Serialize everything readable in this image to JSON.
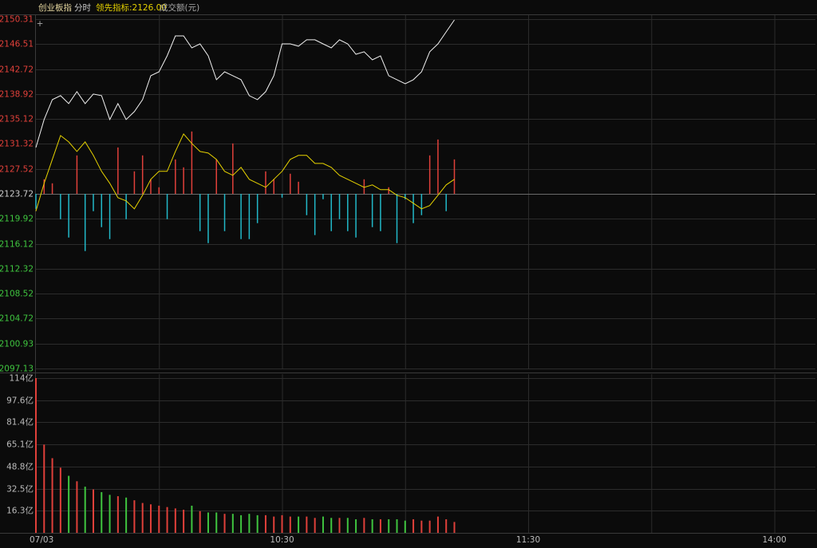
{
  "chart_data": [
    {
      "type": "line",
      "title": "创业板指",
      "header_items": [
        "分时",
        "领先指标:2126.00",
        "成交额(元)"
      ],
      "x": [
        0,
        2,
        4,
        6,
        8,
        10,
        12,
        14,
        16,
        18,
        20,
        22,
        24,
        26,
        28,
        30,
        32,
        34,
        36,
        38,
        40,
        42,
        44,
        46,
        48,
        50,
        52,
        54,
        56,
        58,
        60,
        62,
        64,
        66,
        68,
        70,
        72,
        74,
        76,
        78,
        80,
        82,
        84,
        86,
        88,
        90,
        92,
        94,
        96,
        98,
        100,
        102
      ],
      "xlim": [
        0,
        190
      ],
      "xminor": [
        30,
        60,
        90,
        120,
        150,
        180
      ],
      "ylim": [
        2097.13,
        2150.31
      ],
      "yticks": [
        2150.31,
        2146.51,
        2142.72,
        2138.92,
        2135.12,
        2131.32,
        2127.52,
        2123.72,
        2119.92,
        2116.12,
        2112.32,
        2108.52,
        2104.72,
        2100.93,
        2097.13
      ],
      "baseline": 2123.72,
      "up_color": "#e0403a",
      "down_color": "#22b8c8",
      "flat_color": "#cccccc",
      "down_label_color": "#3fc43f",
      "series": [
        {
          "type": "bar",
          "values": [
            2121.44,
            2125.93,
            2125.32,
            2119.86,
            2117.07,
            2129.57,
            2115.01,
            2121.08,
            2118.65,
            2116.83,
            2130.78,
            2119.86,
            2127.14,
            2129.57,
            2125.93,
            2124.72,
            2119.86,
            2128.96,
            2127.75,
            2133.21,
            2118.04,
            2116.22,
            2128.96,
            2118.04,
            2131.39,
            2116.83,
            2116.83,
            2119.26,
            2127.14,
            2125.93,
            2123.14,
            2126.78,
            2125.56,
            2120.47,
            2117.44,
            2122.9,
            2118.04,
            2119.86,
            2118.04,
            2117.07,
            2125.93,
            2118.65,
            2118.04,
            2124.72,
            2116.22,
            2122.9,
            2119.26,
            2120.47,
            2129.57,
            2131.99,
            2121.08,
            2128.96
          ]
        },
        {
          "type": "line",
          "color": "#f0f0f0",
          "values": [
            2130.78,
            2135.03,
            2138.06,
            2138.67,
            2137.45,
            2139.27,
            2137.45,
            2138.91,
            2138.67,
            2135.03,
            2137.45,
            2135.03,
            2136.24,
            2138.06,
            2141.7,
            2142.3,
            2144.73,
            2147.76,
            2147.76,
            2145.94,
            2146.55,
            2144.73,
            2141.09,
            2142.3,
            2141.7,
            2141.09,
            2138.67,
            2138.06,
            2139.27,
            2141.7,
            2146.55,
            2146.55,
            2146.19,
            2147.16,
            2147.16,
            2146.55,
            2145.94,
            2147.16,
            2146.55,
            2144.97,
            2145.34,
            2144.12,
            2144.73,
            2141.7,
            2141.09,
            2140.48,
            2141.09,
            2142.3,
            2145.34,
            2146.55,
            2148.37,
            2150.19
          ]
        },
        {
          "type": "line",
          "color": "#e6d200",
          "values": [
            2121.08,
            2125.32,
            2128.96,
            2132.6,
            2131.63,
            2130.17,
            2131.63,
            2129.57,
            2127.14,
            2125.32,
            2123.14,
            2122.65,
            2121.44,
            2123.5,
            2125.93,
            2127.14,
            2127.14,
            2130.17,
            2132.84,
            2131.39,
            2130.17,
            2129.93,
            2128.96,
            2127.14,
            2126.54,
            2127.75,
            2125.93,
            2125.32,
            2124.72,
            2125.93,
            2127.14,
            2128.96,
            2129.57,
            2129.57,
            2128.35,
            2128.35,
            2127.75,
            2126.54,
            2125.93,
            2125.32,
            2124.72,
            2125.08,
            2124.35,
            2124.35,
            2123.5,
            2123.14,
            2122.29,
            2121.44,
            2121.93,
            2123.5,
            2125.08,
            2125.93
          ]
        }
      ]
    },
    {
      "type": "bar",
      "x": [
        0,
        2,
        4,
        6,
        8,
        10,
        12,
        14,
        16,
        18,
        20,
        22,
        24,
        26,
        28,
        30,
        32,
        34,
        36,
        38,
        40,
        42,
        44,
        46,
        48,
        50,
        52,
        54,
        56,
        58,
        60,
        62,
        64,
        66,
        68,
        70,
        72,
        74,
        76,
        78,
        80,
        82,
        84,
        86,
        88,
        90,
        92,
        94,
        96,
        98,
        100,
        102
      ],
      "xlim": [
        0,
        190
      ],
      "xminor": [
        30,
        60,
        90,
        120,
        150,
        180
      ],
      "xticks": [
        {
          "value": 0,
          "label": "07/03"
        },
        {
          "value": 60,
          "label": "10:30"
        },
        {
          "value": 120,
          "label": "11:30"
        },
        {
          "value": 180,
          "label": "14:00"
        }
      ],
      "ylim": [
        0,
        114
      ],
      "yticks": [
        {
          "value": 114,
          "label": "114亿"
        },
        {
          "value": 97.6,
          "label": "97.6亿"
        },
        {
          "value": 81.4,
          "label": "81.4亿"
        },
        {
          "value": 65.1,
          "label": "65.1亿"
        },
        {
          "value": 48.8,
          "label": "48.8亿"
        },
        {
          "value": 32.5,
          "label": "32.5亿"
        },
        {
          "value": 16.3,
          "label": "16.3亿"
        }
      ],
      "up_color": "#e0403a",
      "down_color": "#3fc43f",
      "values": [
        114,
        65,
        55,
        48,
        42,
        38,
        34,
        32,
        30,
        28,
        27,
        26,
        24,
        22,
        21,
        20,
        19,
        18,
        17,
        20,
        16,
        15,
        15,
        14,
        14,
        13,
        14,
        13,
        13,
        12,
        13,
        12,
        12,
        12,
        11,
        12,
        11,
        11,
        11,
        10,
        11,
        10,
        10,
        10,
        10,
        9,
        10,
        9,
        9,
        12,
        10,
        8
      ]
    }
  ]
}
